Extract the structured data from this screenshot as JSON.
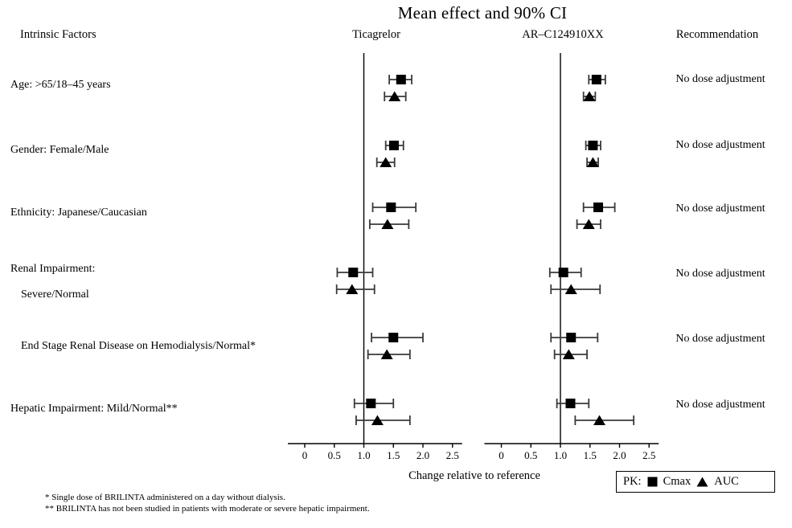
{
  "title": "Mean effect and 90% CI",
  "headers": {
    "factors": "Intrinsic Factors",
    "panel1": "Ticagrelor",
    "panel2": "AR–C124910XX",
    "recommendation": "Recommendation"
  },
  "axis": {
    "label": "Change relative to reference",
    "tick_labels": [
      "0",
      "0.5",
      "1.0",
      "1.5",
      "2.0",
      "2.5"
    ]
  },
  "legend": {
    "prefix": "PK:",
    "items": [
      {
        "marker": "square",
        "label": "Cmax"
      },
      {
        "marker": "triangle",
        "label": "AUC"
      }
    ]
  },
  "footnotes": [
    "* Single dose of BRILINTA administered on a day without dialysis.",
    "** BRILINTA has not been studied in patients with moderate or severe hepatic impairment."
  ],
  "factor_labels": [
    {
      "text": "Age: >65/18–45 years",
      "indent": 0
    },
    {
      "text": "Gender: Female/Male",
      "indent": 0
    },
    {
      "text": "Ethnicity: Japanese/Caucasian",
      "indent": 0
    },
    {
      "text": "Renal Impairment:",
      "indent": 0
    },
    {
      "text": "Severe/Normal",
      "indent": 1
    },
    {
      "text": "End Stage Renal Disease on Hemodialysis/Normal*",
      "indent": 1
    },
    {
      "text": "Hepatic Impairment: Mild/Normal**",
      "indent": 0
    }
  ],
  "chart_data": {
    "type": "forest",
    "title": "Mean effect and 90% CI",
    "ci_level": "90%",
    "xlabel": "Change relative to reference",
    "x_range": [
      0,
      2.5
    ],
    "x_ticks": [
      0,
      0.5,
      1.0,
      1.5,
      2.0,
      2.5
    ],
    "reference_line": 1.0,
    "panels": [
      "Ticagrelor",
      "AR–C124910XX"
    ],
    "marker_legend": {
      "square": "Cmax",
      "triangle": "AUC"
    },
    "rows": [
      {
        "factor": "Age: >65/18–45 years",
        "recommendation": "No dose adjustment",
        "ticagrelor": {
          "cmax": {
            "mean": 1.63,
            "lo": 1.43,
            "hi": 1.81
          },
          "auc": {
            "mean": 1.52,
            "lo": 1.35,
            "hi": 1.71
          }
        },
        "arc124910xx": {
          "cmax": {
            "mean": 1.61,
            "lo": 1.48,
            "hi": 1.76
          },
          "auc": {
            "mean": 1.49,
            "lo": 1.39,
            "hi": 1.59
          }
        }
      },
      {
        "factor": "Gender: Female/Male",
        "recommendation": "No dose adjustment",
        "ticagrelor": {
          "cmax": {
            "mean": 1.51,
            "lo": 1.37,
            "hi": 1.67
          },
          "auc": {
            "mean": 1.37,
            "lo": 1.22,
            "hi": 1.52
          }
        },
        "arc124910xx": {
          "cmax": {
            "mean": 1.55,
            "lo": 1.43,
            "hi": 1.68
          },
          "auc": {
            "mean": 1.55,
            "lo": 1.45,
            "hi": 1.64
          }
        }
      },
      {
        "factor": "Ethnicity: Japanese/Caucasian",
        "recommendation": "No dose adjustment",
        "ticagrelor": {
          "cmax": {
            "mean": 1.46,
            "lo": 1.15,
            "hi": 1.88
          },
          "auc": {
            "mean": 1.4,
            "lo": 1.1,
            "hi": 1.76
          }
        },
        "arc124910xx": {
          "cmax": {
            "mean": 1.64,
            "lo": 1.39,
            "hi": 1.92
          },
          "auc": {
            "mean": 1.48,
            "lo": 1.28,
            "hi": 1.68
          }
        }
      },
      {
        "factor": "Renal Impairment: Severe/Normal",
        "recommendation": "No dose adjustment",
        "ticagrelor": {
          "cmax": {
            "mean": 0.82,
            "lo": 0.55,
            "hi": 1.15
          },
          "auc": {
            "mean": 0.8,
            "lo": 0.54,
            "hi": 1.18
          }
        },
        "arc124910xx": {
          "cmax": {
            "mean": 1.05,
            "lo": 0.82,
            "hi": 1.35
          },
          "auc": {
            "mean": 1.18,
            "lo": 0.84,
            "hi": 1.67
          }
        }
      },
      {
        "factor": "End Stage Renal Disease on Hemodialysis/Normal*",
        "recommendation": "No dose adjustment",
        "ticagrelor": {
          "cmax": {
            "mean": 1.5,
            "lo": 1.13,
            "hi": 2.0
          },
          "auc": {
            "mean": 1.39,
            "lo": 1.07,
            "hi": 1.78
          }
        },
        "arc124910xx": {
          "cmax": {
            "mean": 1.18,
            "lo": 0.84,
            "hi": 1.63
          },
          "auc": {
            "mean": 1.14,
            "lo": 0.9,
            "hi": 1.45
          }
        }
      },
      {
        "factor": "Hepatic Impairment: Mild/Normal**",
        "recommendation": "No dose adjustment",
        "ticagrelor": {
          "cmax": {
            "mean": 1.12,
            "lo": 0.84,
            "hi": 1.5
          },
          "auc": {
            "mean": 1.23,
            "lo": 0.87,
            "hi": 1.78
          }
        },
        "arc124910xx": {
          "cmax": {
            "mean": 1.17,
            "lo": 0.94,
            "hi": 1.48
          },
          "auc": {
            "mean": 1.66,
            "lo": 1.25,
            "hi": 2.24
          }
        }
      }
    ],
    "colors": {
      "marker": "#000000",
      "error_bar": "#3a3a3a",
      "axis": "#000000"
    }
  }
}
